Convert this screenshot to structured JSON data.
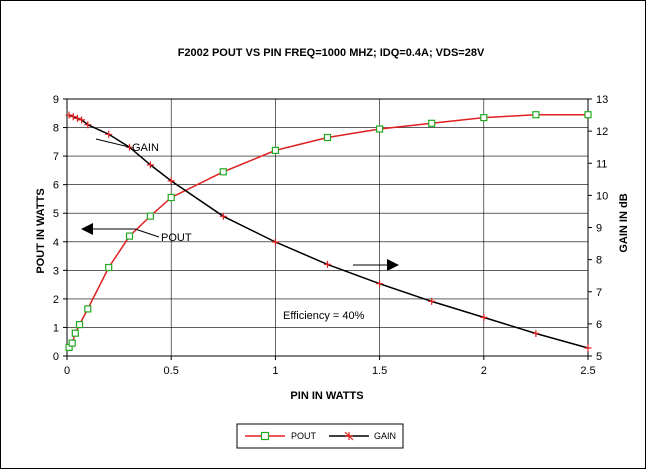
{
  "chart_data": {
    "type": "line",
    "title": "F2002 POUT VS PIN  FREQ=1000 MHZ;  IDQ=0.4A; VDS=28V",
    "xlabel": "PIN IN WATTS",
    "ylabel_left": "POUT IN WATTS",
    "ylabel_right": "GAIN IN dB",
    "xlim": [
      0,
      2.5
    ],
    "ylim_left": [
      0,
      9
    ],
    "ylim_right": [
      5,
      13
    ],
    "x_ticks": [
      "0",
      "0.5",
      "1",
      "1.5",
      "2",
      "2.5"
    ],
    "y_left_ticks": [
      "0",
      "1",
      "2",
      "3",
      "4",
      "5",
      "6",
      "7",
      "8",
      "9"
    ],
    "y_right_ticks": [
      "5",
      "6",
      "7",
      "8",
      "9",
      "10",
      "11",
      "12",
      "13"
    ],
    "grid": true,
    "legend_position": "bottom",
    "series": [
      {
        "name": "POUT",
        "axis": "left",
        "color": "#e02020",
        "marker": "square",
        "x": [
          0.01,
          0.025,
          0.04,
          0.06,
          0.1,
          0.2,
          0.3,
          0.4,
          0.5,
          0.75,
          1.0,
          1.25,
          1.5,
          1.75,
          2.0,
          2.25,
          2.5
        ],
        "y": [
          0.3,
          0.45,
          0.8,
          1.1,
          1.65,
          3.1,
          4.2,
          4.9,
          5.55,
          6.45,
          7.2,
          7.65,
          7.95,
          8.15,
          8.35,
          8.45,
          8.45
        ]
      },
      {
        "name": "GAIN",
        "axis": "right",
        "color": "#000000",
        "line_color": "#000000",
        "marker_color": "#e02020",
        "marker": "plus",
        "x": [
          0.01,
          0.03,
          0.05,
          0.07,
          0.1,
          0.2,
          0.3,
          0.4,
          0.5,
          0.75,
          1.0,
          1.25,
          1.5,
          1.75,
          2.0,
          2.25,
          2.5
        ],
        "y": [
          12.5,
          12.45,
          12.4,
          12.35,
          12.2,
          11.9,
          11.5,
          10.95,
          10.45,
          9.35,
          8.55,
          7.85,
          7.25,
          6.7,
          6.2,
          5.7,
          5.25
        ]
      }
    ],
    "annotations": {
      "gain": "GAIN",
      "pout": "POUT",
      "efficiency": "Efficiency = 40%"
    }
  }
}
